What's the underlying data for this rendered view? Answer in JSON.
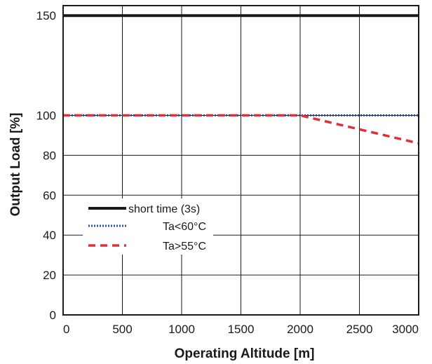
{
  "chart_data": {
    "type": "line",
    "title": "",
    "xlabel": "Operating Altitude [m]",
    "ylabel": "Output Load [%]",
    "xlim": [
      0,
      3000
    ],
    "ylim": [
      0,
      155
    ],
    "x_ticks": [
      0,
      500,
      1000,
      1500,
      2000,
      2500,
      3000
    ],
    "y_ticks": [
      0,
      20,
      40,
      60,
      80,
      100,
      150
    ],
    "grid": true,
    "legend_position": "lower-left",
    "series": [
      {
        "name": "short time (3s)",
        "style": "solid",
        "color": "#1a1a1a",
        "x": [
          0,
          3000
        ],
        "y": [
          150,
          150
        ]
      },
      {
        "name": "Ta<60°C",
        "style": "dotted",
        "color": "#2b4fa8",
        "x": [
          0,
          3000
        ],
        "y": [
          100,
          100
        ]
      },
      {
        "name": "Ta>55°C",
        "style": "dashed",
        "color": "#e0303a",
        "x": [
          0,
          2000,
          3000
        ],
        "y": [
          100,
          100,
          86
        ]
      }
    ]
  }
}
